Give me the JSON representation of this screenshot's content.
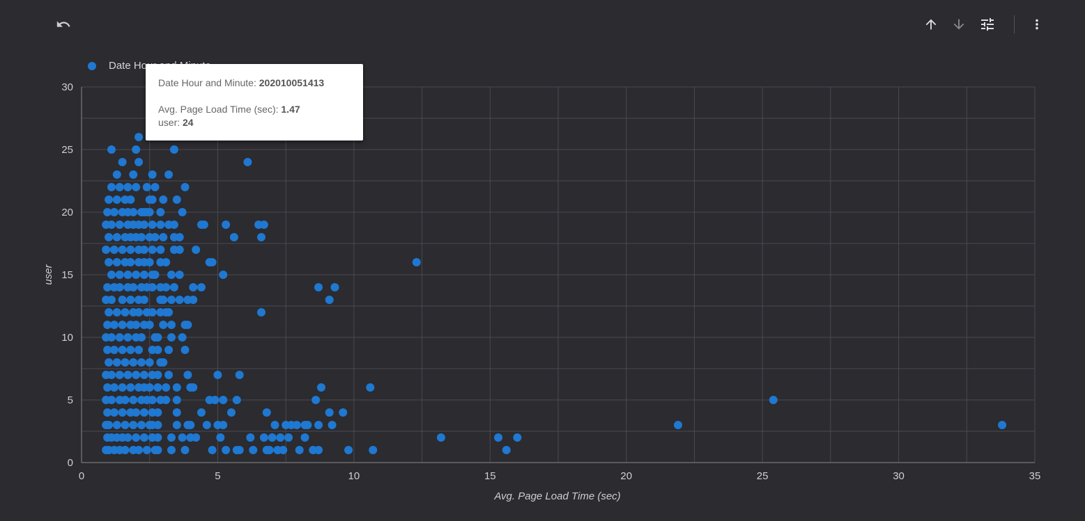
{
  "toolbar": {
    "undo_icon": "undo-icon",
    "sort_asc_icon": "arrow-up-icon",
    "sort_desc_icon": "arrow-down-icon",
    "filter_icon": "tune-icon",
    "more_icon": "more-vert-icon"
  },
  "colors": {
    "background": "#2b2b30",
    "point": "#1f78d1",
    "grid": "#4a4a4f",
    "axis_text": "#d0d0d0"
  },
  "tooltip": {
    "dimension_label": "Date Hour and Minute: ",
    "dimension_value": "202010051413",
    "x_label": "Avg. Page Load Time (sec): ",
    "x_value": "1.47",
    "y_label": "user: ",
    "y_value": "24"
  },
  "chart_data": {
    "type": "scatter",
    "xlabel": "Avg. Page Load Time (sec)",
    "ylabel": "user",
    "xlim": [
      0,
      35
    ],
    "ylim": [
      0,
      30
    ],
    "xticks": [
      0,
      5,
      10,
      15,
      20,
      25,
      30,
      35
    ],
    "yticks": [
      0,
      5,
      10,
      15,
      20,
      25,
      30
    ],
    "grid": true,
    "legend": {
      "position": "top-left",
      "entries": [
        "Date Hour and Minute"
      ]
    },
    "series": [
      {
        "name": "Date Hour and Minute",
        "points": [
          [
            33.8,
            3
          ],
          [
            25.4,
            5
          ],
          [
            21.9,
            3
          ],
          [
            16.0,
            2
          ],
          [
            15.3,
            2
          ],
          [
            15.6,
            1
          ],
          [
            13.2,
            2
          ],
          [
            12.3,
            16
          ],
          [
            10.6,
            6
          ],
          [
            10.7,
            1
          ],
          [
            9.8,
            1
          ],
          [
            9.6,
            4
          ],
          [
            9.3,
            14
          ],
          [
            9.2,
            3
          ],
          [
            9.1,
            4
          ],
          [
            9.1,
            13
          ],
          [
            8.8,
            6
          ],
          [
            8.7,
            14
          ],
          [
            8.6,
            5
          ],
          [
            8.7,
            3
          ],
          [
            8.7,
            1
          ],
          [
            8.5,
            1
          ],
          [
            8.3,
            3
          ],
          [
            8.2,
            2
          ],
          [
            8.0,
            1
          ],
          [
            8.2,
            3
          ],
          [
            7.9,
            3
          ],
          [
            7.7,
            3
          ],
          [
            7.6,
            2
          ],
          [
            7.5,
            3
          ],
          [
            7.4,
            1
          ],
          [
            7.3,
            2
          ],
          [
            7.2,
            1
          ],
          [
            7.1,
            3
          ],
          [
            7.0,
            2
          ],
          [
            6.9,
            1
          ],
          [
            6.8,
            4
          ],
          [
            6.8,
            1
          ],
          [
            6.7,
            2
          ],
          [
            6.7,
            19
          ],
          [
            6.6,
            18
          ],
          [
            6.5,
            19
          ],
          [
            6.6,
            12
          ],
          [
            6.3,
            1
          ],
          [
            6.2,
            2
          ],
          [
            6.1,
            24
          ],
          [
            5.8,
            1
          ],
          [
            5.7,
            1
          ],
          [
            5.8,
            7
          ],
          [
            5.7,
            5
          ],
          [
            5.6,
            18
          ],
          [
            5.5,
            4
          ],
          [
            5.3,
            19
          ],
          [
            5.3,
            1
          ],
          [
            5.2,
            15
          ],
          [
            5.2,
            3
          ],
          [
            5.2,
            5
          ],
          [
            5.1,
            2
          ],
          [
            5.0,
            7
          ],
          [
            5.0,
            3
          ],
          [
            4.9,
            5
          ],
          [
            4.8,
            1
          ],
          [
            4.8,
            16
          ],
          [
            4.7,
            16
          ],
          [
            4.7,
            5
          ],
          [
            4.6,
            3
          ],
          [
            4.5,
            19
          ],
          [
            4.4,
            4
          ],
          [
            4.4,
            14
          ],
          [
            4.4,
            19
          ],
          [
            4.2,
            17
          ],
          [
            4.2,
            2
          ],
          [
            4.1,
            6
          ],
          [
            4.1,
            14
          ],
          [
            4.1,
            13
          ],
          [
            4.0,
            6
          ],
          [
            4.0,
            3
          ],
          [
            4.0,
            2
          ],
          [
            3.9,
            3
          ],
          [
            3.9,
            7
          ],
          [
            3.9,
            13
          ],
          [
            3.9,
            11
          ],
          [
            3.8,
            22
          ],
          [
            3.8,
            11
          ],
          [
            3.8,
            9
          ],
          [
            3.8,
            1
          ],
          [
            3.7,
            2
          ],
          [
            3.7,
            10
          ],
          [
            3.7,
            20
          ],
          [
            3.6,
            18
          ],
          [
            3.6,
            17
          ],
          [
            3.6,
            13
          ],
          [
            3.6,
            15
          ],
          [
            3.5,
            21
          ],
          [
            3.5,
            6
          ],
          [
            3.5,
            5
          ],
          [
            3.5,
            4
          ],
          [
            3.5,
            3
          ],
          [
            3.4,
            17
          ],
          [
            3.4,
            14
          ],
          [
            3.4,
            18
          ],
          [
            3.4,
            25
          ],
          [
            3.4,
            19
          ],
          [
            3.3,
            13
          ],
          [
            3.3,
            11
          ],
          [
            3.3,
            15
          ],
          [
            3.3,
            10
          ],
          [
            3.3,
            2
          ],
          [
            3.3,
            1
          ],
          [
            3.2,
            19
          ],
          [
            3.2,
            12
          ],
          [
            3.2,
            9
          ],
          [
            3.2,
            7
          ],
          [
            3.2,
            23
          ],
          [
            3.1,
            16
          ],
          [
            3.1,
            14
          ],
          [
            3.1,
            12
          ],
          [
            3.1,
            6
          ],
          [
            3.1,
            5
          ],
          [
            3.0,
            21
          ],
          [
            3.0,
            18
          ],
          [
            3.0,
            13
          ],
          [
            3.0,
            11
          ],
          [
            3.0,
            8
          ],
          [
            2.9,
            20
          ],
          [
            2.9,
            19
          ],
          [
            2.9,
            17
          ],
          [
            2.9,
            16
          ],
          [
            2.9,
            14
          ],
          [
            2.9,
            13
          ],
          [
            2.9,
            12
          ],
          [
            2.9,
            8
          ],
          [
            2.9,
            5
          ],
          [
            2.8,
            10
          ],
          [
            2.8,
            9
          ],
          [
            2.8,
            7
          ],
          [
            2.8,
            6
          ],
          [
            2.8,
            4
          ],
          [
            2.8,
            3
          ],
          [
            2.8,
            2
          ],
          [
            2.8,
            1
          ],
          [
            2.7,
            22
          ],
          [
            2.7,
            18
          ],
          [
            2.7,
            15
          ],
          [
            2.7,
            10
          ],
          [
            2.7,
            1
          ],
          [
            2.6,
            23
          ],
          [
            2.6,
            21
          ],
          [
            2.6,
            19
          ],
          [
            2.6,
            17
          ],
          [
            2.6,
            15
          ],
          [
            2.6,
            14
          ],
          [
            2.6,
            12
          ],
          [
            2.6,
            9
          ],
          [
            2.6,
            7
          ],
          [
            2.6,
            5
          ],
          [
            2.6,
            4
          ],
          [
            2.6,
            3
          ],
          [
            2.6,
            2
          ],
          [
            2.5,
            21
          ],
          [
            2.5,
            20
          ],
          [
            2.5,
            18
          ],
          [
            2.5,
            16
          ],
          [
            2.5,
            11
          ],
          [
            2.5,
            8
          ],
          [
            2.5,
            6
          ],
          [
            2.5,
            3
          ],
          [
            2.4,
            22
          ],
          [
            2.4,
            20
          ],
          [
            2.4,
            14
          ],
          [
            2.4,
            12
          ],
          [
            2.4,
            5
          ],
          [
            2.4,
            1
          ],
          [
            2.3,
            20
          ],
          [
            2.3,
            19
          ],
          [
            2.3,
            17
          ],
          [
            2.3,
            16
          ],
          [
            2.3,
            15
          ],
          [
            2.3,
            13
          ],
          [
            2.3,
            11
          ],
          [
            2.3,
            7
          ],
          [
            2.3,
            6
          ],
          [
            2.3,
            4
          ],
          [
            2.3,
            2
          ],
          [
            2.2,
            20
          ],
          [
            2.2,
            18
          ],
          [
            2.2,
            14
          ],
          [
            2.2,
            10
          ],
          [
            2.2,
            8
          ],
          [
            2.2,
            5
          ],
          [
            2.2,
            3
          ],
          [
            2.1,
            26
          ],
          [
            2.1,
            24
          ],
          [
            2.1,
            19
          ],
          [
            2.1,
            17
          ],
          [
            2.1,
            16
          ],
          [
            2.1,
            13
          ],
          [
            2.1,
            12
          ],
          [
            2.1,
            9
          ],
          [
            2.1,
            6
          ],
          [
            2.1,
            1
          ],
          [
            2.0,
            25
          ],
          [
            2.0,
            22
          ],
          [
            2.0,
            18
          ],
          [
            2.0,
            15
          ],
          [
            2.0,
            11
          ],
          [
            2.0,
            10
          ],
          [
            2.0,
            7
          ],
          [
            2.0,
            4
          ],
          [
            2.0,
            2
          ],
          [
            1.9,
            23
          ],
          [
            1.9,
            20
          ],
          [
            1.9,
            19
          ],
          [
            1.9,
            14
          ],
          [
            1.9,
            12
          ],
          [
            1.9,
            8
          ],
          [
            1.9,
            5
          ],
          [
            1.9,
            3
          ],
          [
            1.9,
            1
          ],
          [
            1.8,
            21
          ],
          [
            1.8,
            18
          ],
          [
            1.8,
            17
          ],
          [
            1.8,
            16
          ],
          [
            1.8,
            13
          ],
          [
            1.8,
            11
          ],
          [
            1.8,
            9
          ],
          [
            1.8,
            6
          ],
          [
            1.8,
            4
          ],
          [
            1.7,
            22
          ],
          [
            1.7,
            20
          ],
          [
            1.7,
            19
          ],
          [
            1.7,
            15
          ],
          [
            1.7,
            14
          ],
          [
            1.7,
            10
          ],
          [
            1.7,
            7
          ],
          [
            1.7,
            2
          ],
          [
            1.6,
            21
          ],
          [
            1.6,
            18
          ],
          [
            1.6,
            16
          ],
          [
            1.6,
            12
          ],
          [
            1.6,
            8
          ],
          [
            1.6,
            5
          ],
          [
            1.6,
            3
          ],
          [
            1.6,
            1
          ],
          [
            1.5,
            24
          ],
          [
            1.5,
            20
          ],
          [
            1.5,
            17
          ],
          [
            1.5,
            13
          ],
          [
            1.5,
            11
          ],
          [
            1.5,
            9
          ],
          [
            1.5,
            6
          ],
          [
            1.5,
            4
          ],
          [
            1.5,
            2
          ],
          [
            1.4,
            22
          ],
          [
            1.4,
            19
          ],
          [
            1.4,
            15
          ],
          [
            1.4,
            14
          ],
          [
            1.4,
            10
          ],
          [
            1.4,
            7
          ],
          [
            1.4,
            5
          ],
          [
            1.4,
            1
          ],
          [
            1.3,
            23
          ],
          [
            1.3,
            21
          ],
          [
            1.3,
            18
          ],
          [
            1.3,
            16
          ],
          [
            1.3,
            12
          ],
          [
            1.3,
            8
          ],
          [
            1.3,
            3
          ],
          [
            1.3,
            2
          ],
          [
            1.2,
            20
          ],
          [
            1.2,
            17
          ],
          [
            1.2,
            14
          ],
          [
            1.2,
            11
          ],
          [
            1.2,
            9
          ],
          [
            1.2,
            6
          ],
          [
            1.2,
            4
          ],
          [
            1.2,
            1
          ],
          [
            1.1,
            25
          ],
          [
            1.1,
            22
          ],
          [
            1.1,
            19
          ],
          [
            1.1,
            15
          ],
          [
            1.1,
            13
          ],
          [
            1.1,
            10
          ],
          [
            1.1,
            7
          ],
          [
            1.1,
            5
          ],
          [
            1.1,
            2
          ],
          [
            1.0,
            21
          ],
          [
            1.0,
            18
          ],
          [
            1.0,
            16
          ],
          [
            1.0,
            12
          ],
          [
            1.0,
            8
          ],
          [
            1.0,
            3
          ],
          [
            1.0,
            1
          ],
          [
            0.95,
            20
          ],
          [
            0.95,
            14
          ],
          [
            0.95,
            11
          ],
          [
            0.95,
            9
          ],
          [
            0.95,
            6
          ],
          [
            0.95,
            4
          ],
          [
            0.95,
            2
          ],
          [
            0.9,
            19
          ],
          [
            0.9,
            17
          ],
          [
            0.9,
            13
          ],
          [
            0.9,
            10
          ],
          [
            0.9,
            7
          ],
          [
            0.9,
            5
          ],
          [
            0.9,
            3
          ],
          [
            0.9,
            1
          ]
        ]
      }
    ]
  }
}
